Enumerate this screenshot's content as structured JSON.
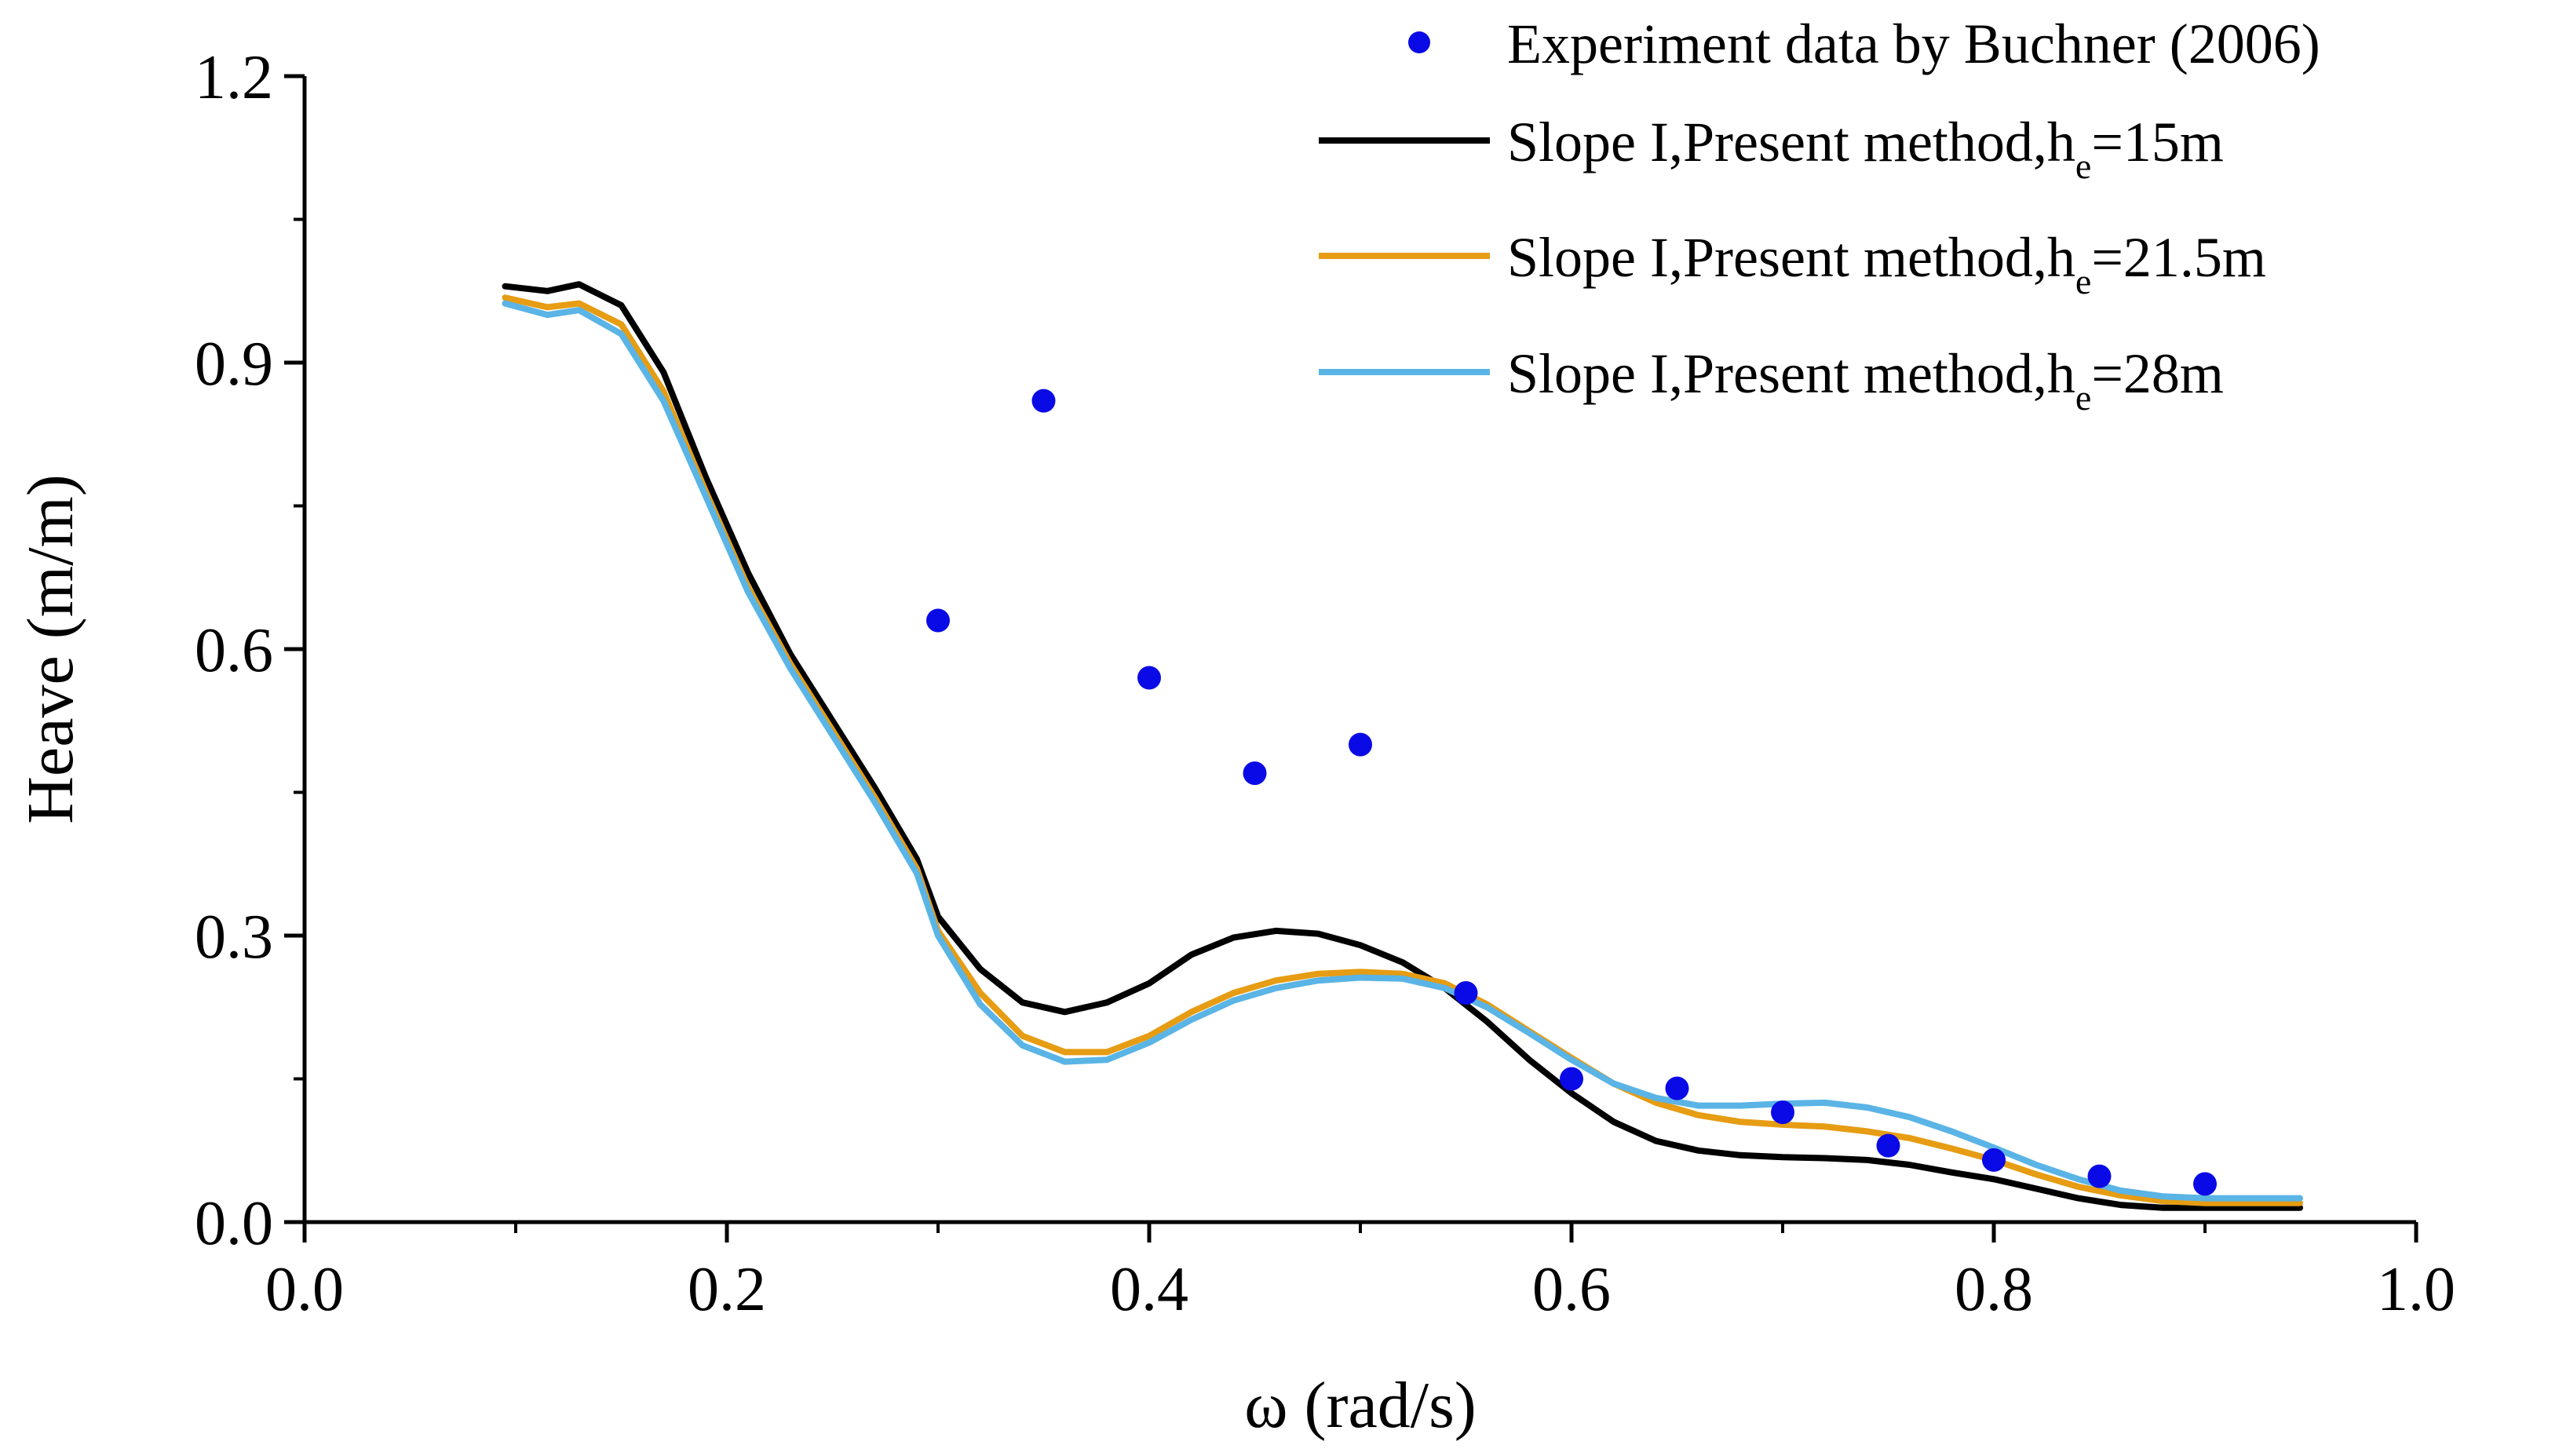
{
  "chart_data": {
    "type": "line",
    "title": "",
    "xlabel": "ω (rad/s)",
    "ylabel": "Heave (m/m)",
    "xlim": [
      0.0,
      1.0
    ],
    "ylim": [
      0.0,
      1.2
    ],
    "xticks": [
      "0.0",
      "0.2",
      "0.4",
      "0.6",
      "0.8",
      "1.0"
    ],
    "yticks": [
      "0.0",
      "0.3",
      "0.6",
      "0.9",
      "1.2"
    ],
    "legend_position": "top-right",
    "series": [
      {
        "name": "Experiment data by Buchner (2006)",
        "kind": "scatter",
        "color": "#0a0ae6",
        "x": [
          0.3,
          0.35,
          0.4,
          0.45,
          0.5,
          0.55,
          0.6,
          0.65,
          0.7,
          0.75,
          0.8,
          0.85,
          0.9
        ],
        "y": [
          0.63,
          0.86,
          0.57,
          0.47,
          0.5,
          0.24,
          0.15,
          0.14,
          0.115,
          0.08,
          0.065,
          0.048,
          0.04
        ]
      },
      {
        "name": "Slope I,Present method,h",
        "subscript": "e",
        "suffix": "=15m",
        "kind": "line",
        "color": "#000000",
        "x": [
          0.095,
          0.115,
          0.13,
          0.15,
          0.17,
          0.19,
          0.21,
          0.23,
          0.25,
          0.27,
          0.29,
          0.3,
          0.32,
          0.34,
          0.36,
          0.38,
          0.4,
          0.42,
          0.44,
          0.46,
          0.48,
          0.5,
          0.52,
          0.54,
          0.56,
          0.58,
          0.6,
          0.62,
          0.64,
          0.66,
          0.68,
          0.7,
          0.72,
          0.74,
          0.76,
          0.78,
          0.8,
          0.82,
          0.84,
          0.86,
          0.88,
          0.9,
          0.92,
          0.945
        ],
        "y": [
          0.98,
          0.975,
          0.982,
          0.96,
          0.89,
          0.78,
          0.68,
          0.595,
          0.525,
          0.455,
          0.38,
          0.32,
          0.265,
          0.23,
          0.22,
          0.23,
          0.25,
          0.28,
          0.298,
          0.305,
          0.302,
          0.29,
          0.272,
          0.245,
          0.21,
          0.17,
          0.135,
          0.105,
          0.085,
          0.075,
          0.07,
          0.068,
          0.067,
          0.065,
          0.06,
          0.052,
          0.045,
          0.035,
          0.025,
          0.018,
          0.015,
          0.015,
          0.015,
          0.015
        ]
      },
      {
        "name": "Slope I,Present method,h",
        "subscript": "e",
        "suffix": "=21.5m",
        "kind": "line",
        "color": "#e69c13",
        "x": [
          0.095,
          0.115,
          0.13,
          0.15,
          0.17,
          0.19,
          0.21,
          0.23,
          0.25,
          0.27,
          0.29,
          0.3,
          0.32,
          0.34,
          0.36,
          0.38,
          0.4,
          0.42,
          0.44,
          0.46,
          0.48,
          0.5,
          0.52,
          0.54,
          0.56,
          0.58,
          0.6,
          0.62,
          0.64,
          0.66,
          0.68,
          0.7,
          0.72,
          0.74,
          0.76,
          0.78,
          0.8,
          0.82,
          0.84,
          0.86,
          0.88,
          0.9,
          0.92,
          0.945
        ],
        "y": [
          0.968,
          0.958,
          0.962,
          0.94,
          0.87,
          0.765,
          0.665,
          0.585,
          0.515,
          0.445,
          0.37,
          0.305,
          0.24,
          0.195,
          0.178,
          0.178,
          0.195,
          0.22,
          0.24,
          0.253,
          0.26,
          0.262,
          0.26,
          0.25,
          0.228,
          0.2,
          0.172,
          0.145,
          0.125,
          0.112,
          0.105,
          0.102,
          0.1,
          0.095,
          0.088,
          0.077,
          0.065,
          0.05,
          0.037,
          0.028,
          0.022,
          0.02,
          0.02,
          0.02
        ]
      },
      {
        "name": "Slope I,Present method,h",
        "subscript": "e",
        "suffix": "=28m",
        "kind": "line",
        "color": "#5ab4e5",
        "x": [
          0.095,
          0.115,
          0.13,
          0.15,
          0.17,
          0.19,
          0.21,
          0.23,
          0.25,
          0.27,
          0.29,
          0.3,
          0.32,
          0.34,
          0.36,
          0.38,
          0.4,
          0.42,
          0.44,
          0.46,
          0.48,
          0.5,
          0.52,
          0.54,
          0.56,
          0.58,
          0.6,
          0.62,
          0.64,
          0.66,
          0.68,
          0.7,
          0.72,
          0.74,
          0.76,
          0.78,
          0.8,
          0.82,
          0.84,
          0.86,
          0.88,
          0.9,
          0.92,
          0.945
        ],
        "y": [
          0.962,
          0.95,
          0.955,
          0.93,
          0.86,
          0.76,
          0.66,
          0.58,
          0.51,
          0.44,
          0.365,
          0.3,
          0.228,
          0.185,
          0.168,
          0.17,
          0.188,
          0.212,
          0.232,
          0.245,
          0.253,
          0.256,
          0.255,
          0.245,
          0.225,
          0.198,
          0.17,
          0.145,
          0.13,
          0.122,
          0.122,
          0.124,
          0.125,
          0.12,
          0.11,
          0.095,
          0.078,
          0.06,
          0.045,
          0.033,
          0.027,
          0.025,
          0.025,
          0.025
        ]
      }
    ]
  }
}
